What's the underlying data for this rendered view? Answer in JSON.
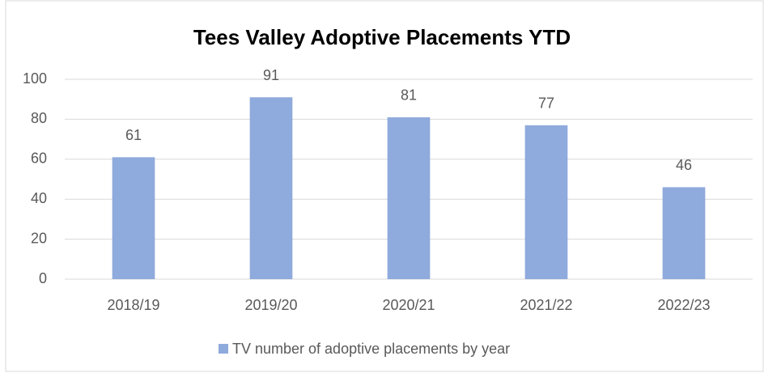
{
  "chart_data": {
    "type": "bar",
    "title": "Tees Valley Adoptive Placements YTD",
    "categories": [
      "2018/19",
      "2019/20",
      "2020/21",
      "2021/22",
      "2022/23"
    ],
    "series": [
      {
        "name": "TV number of adoptive placements by year",
        "color": "#8faadc",
        "values": [
          61,
          91,
          81,
          77,
          46
        ]
      }
    ],
    "ylim": [
      0,
      100
    ],
    "yticks": [
      0,
      20,
      40,
      60,
      80,
      100
    ],
    "grid": true,
    "legend": "bottom",
    "data_labels": true
  }
}
